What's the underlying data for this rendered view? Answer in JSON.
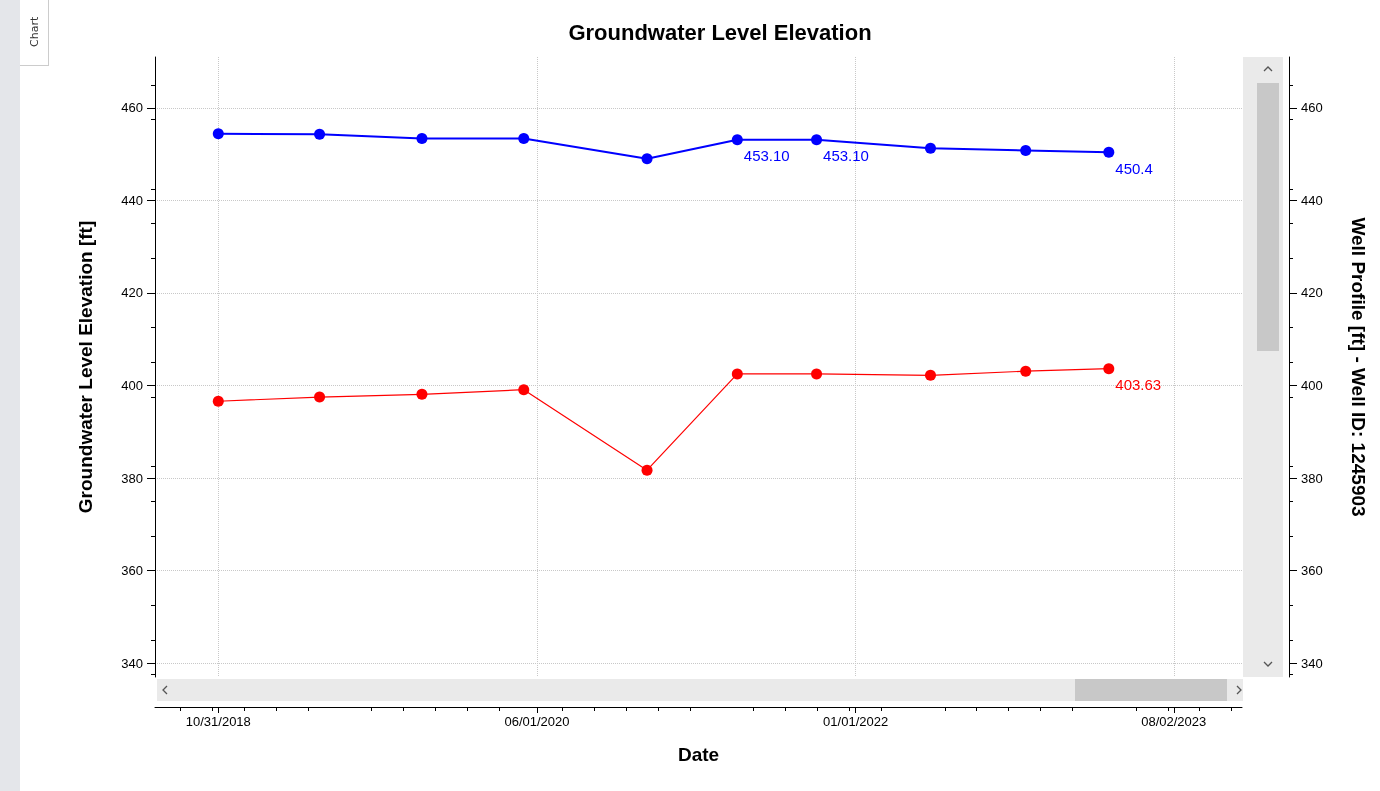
{
  "chart_data": {
    "type": "line",
    "title": "Groundwater Level Elevation",
    "xlabel": "Date",
    "ylabel": "Groundwater Level Elevation [ft]",
    "y2label": "Well Profile [ft] - Well ID: 1245903",
    "x": [
      "2018-10-31",
      "2019-05-03",
      "2019-11-05",
      "2020-05-08",
      "2020-12-18",
      "2021-05-31",
      "2021-10-22",
      "2022-05-17",
      "2022-11-06",
      "2023-04-06"
    ],
    "series": [
      {
        "color": "#0000ff",
        "values": [
          454.4,
          454.3,
          453.4,
          453.4,
          449.0,
          453.1,
          453.1,
          451.3,
          450.8,
          450.4
        ],
        "value_labels": [
          null,
          null,
          null,
          null,
          null,
          "453.10",
          "453.10",
          null,
          null,
          "450.4"
        ]
      },
      {
        "color": "#ff0000",
        "axis": "y2",
        "values": [
          396.6,
          397.5,
          398.1,
          399.1,
          381.7,
          402.5,
          402.5,
          402.2,
          403.1,
          403.63
        ],
        "value_labels": [
          null,
          null,
          null,
          null,
          null,
          null,
          null,
          null,
          null,
          "403.63"
        ]
      }
    ],
    "xlim": [
      "2018-07-08",
      "2023-12-04"
    ],
    "xticks": [
      {
        "value": "2018-10-31",
        "label": "10/31/2018"
      },
      {
        "value": "2020-06-01",
        "label": "06/01/2020"
      },
      {
        "value": "2022-01-01",
        "label": "01/01/2022"
      },
      {
        "value": "2023-08-02",
        "label": "08/02/2023"
      }
    ],
    "ylim": [
      337,
      471
    ],
    "yticks": [
      340,
      360,
      380,
      400,
      420,
      440,
      460
    ],
    "y2lim": [
      337,
      471
    ],
    "y2ticks": [
      340,
      360,
      380,
      400,
      420,
      440,
      460
    ],
    "grid": true,
    "marker": "circle",
    "line_style": "solid",
    "annotations": [
      "Chart"
    ]
  }
}
